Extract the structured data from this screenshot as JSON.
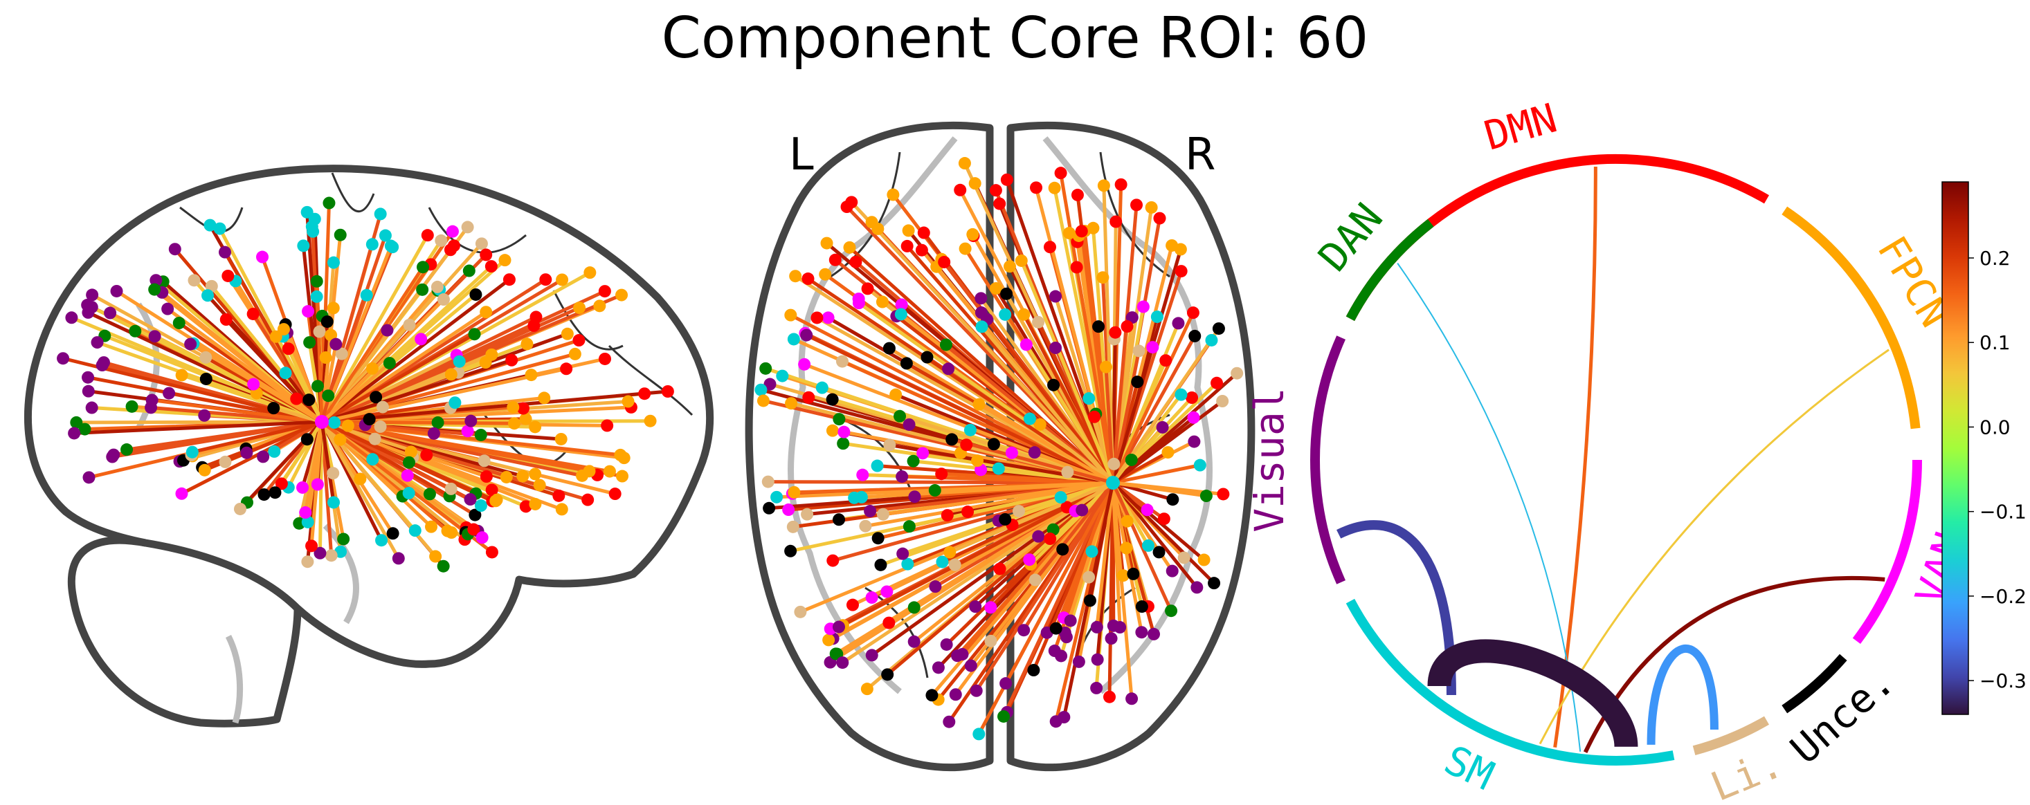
{
  "title": "Component Core ROI: 60",
  "hemisphere_labels": {
    "left": "L",
    "right": "R"
  },
  "networks": [
    {
      "name": "DMN",
      "color": "#ff0000"
    },
    {
      "name": "FPCN",
      "color": "#ffa500"
    },
    {
      "name": "VAN",
      "color": "#ff00ff"
    },
    {
      "name": "Unce.",
      "color": "#000000"
    },
    {
      "name": "Li.",
      "color": "#deb887"
    },
    {
      "name": "SM",
      "color": "#00ced1"
    },
    {
      "name": "Visual",
      "color": "#800080"
    },
    {
      "name": "DAN",
      "color": "#008000"
    }
  ],
  "connections": [
    {
      "from": "SM",
      "to": "DMN",
      "weight": 0.16
    },
    {
      "from": "SM",
      "to": "FPCN",
      "weight": 0.06
    },
    {
      "from": "SM",
      "to": "DAN",
      "weight": -0.18
    },
    {
      "from": "SM",
      "to": "VAN",
      "weight": 0.28
    },
    {
      "from": "SM",
      "to": "Visual",
      "weight": -0.3
    },
    {
      "from": "SM",
      "to": "SM",
      "weight": -0.34
    },
    {
      "from": "SM",
      "to": "Li.",
      "weight": -0.22
    }
  ],
  "colorbar": {
    "colormap": "turbo",
    "min": -0.34,
    "max": 0.29,
    "ticks": [
      "0.2",
      "0.1",
      "0.0",
      "−0.1",
      "−0.2",
      "−0.3"
    ],
    "tick_values": [
      0.2,
      0.1,
      0.0,
      -0.1,
      -0.2,
      -0.3
    ]
  }
}
